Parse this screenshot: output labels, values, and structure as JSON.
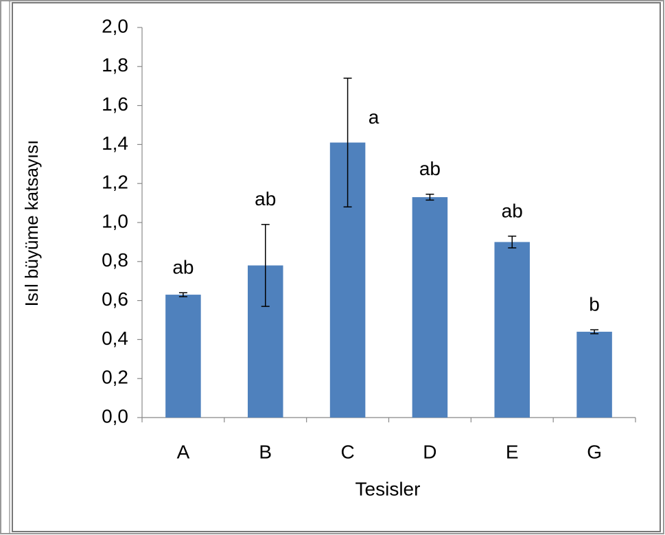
{
  "chart_data": {
    "type": "bar",
    "x_label": "Tesisler",
    "y_label": "Isıl büyüme katsayısı",
    "categories": [
      "A",
      "B",
      "C",
      "D",
      "E",
      "G"
    ],
    "values": [
      0.63,
      0.78,
      1.41,
      1.13,
      0.9,
      0.44
    ],
    "errors": [
      0.01,
      0.21,
      0.33,
      0.015,
      0.03,
      0.01
    ],
    "annotations": [
      "ab",
      "ab",
      "a",
      "ab",
      "ab",
      "b"
    ],
    "color": "#4f81bd",
    "ylim": [
      0,
      2.0
    ],
    "yticks": [
      {
        "value": 0,
        "label": "0,0"
      },
      {
        "value": 0.2,
        "label": "0,2"
      },
      {
        "value": 0.4,
        "label": "0,4"
      },
      {
        "value": 0.6,
        "label": "0,6"
      },
      {
        "value": 0.8,
        "label": "0,8"
      },
      {
        "value": 1.0,
        "label": "1,0"
      },
      {
        "value": 1.2,
        "label": "1,2"
      },
      {
        "value": 1.4,
        "label": "1,4"
      },
      {
        "value": 1.6,
        "label": "1,6"
      },
      {
        "value": 1.8,
        "label": "1,8"
      },
      {
        "value": 2.0,
        "label": "2,0"
      }
    ],
    "grid": false
  }
}
